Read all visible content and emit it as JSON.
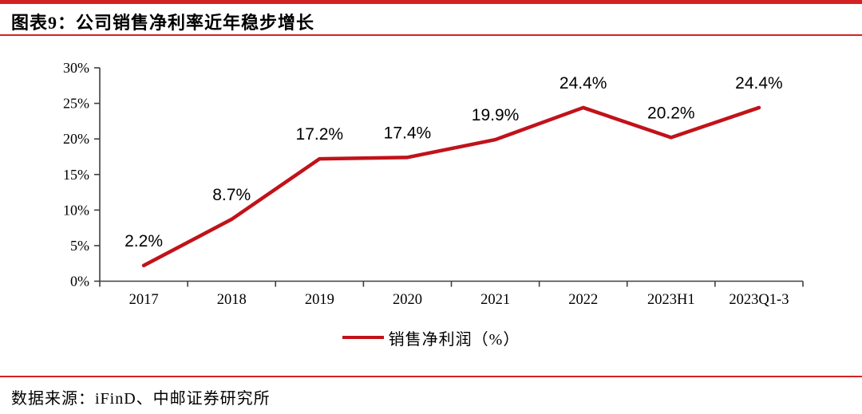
{
  "header": {
    "title": "图表9：公司销售净利率近年稳步增长"
  },
  "chart_data": {
    "type": "line",
    "title": "公司销售净利率近年稳步增长",
    "categories": [
      "2017",
      "2018",
      "2019",
      "2020",
      "2021",
      "2022",
      "2023H1",
      "2023Q1-3"
    ],
    "series": [
      {
        "name": "销售净利润（%）",
        "values": [
          2.2,
          8.7,
          17.2,
          17.4,
          19.9,
          24.4,
          20.2,
          24.4
        ]
      }
    ],
    "point_labels": [
      "2.2%",
      "8.7%",
      "17.2%",
      "17.4%",
      "19.9%",
      "24.4%",
      "20.2%",
      "24.4%"
    ],
    "y_ticks": [
      "0%",
      "5%",
      "10%",
      "15%",
      "20%",
      "25%",
      "30%"
    ],
    "ylim": [
      0,
      30
    ],
    "y_step": 5,
    "grid": false,
    "xlabel": "",
    "ylabel": "",
    "legend": {
      "label": "销售净利润（%）",
      "position": "bottom"
    }
  },
  "footer": {
    "source": "数据来源：iFinD、中邮证券研究所"
  },
  "colors": {
    "accent_red": "#d42222",
    "line_red": "#c1121a",
    "axis_gray": "#3f3f3f",
    "text_black": "#000000"
  }
}
